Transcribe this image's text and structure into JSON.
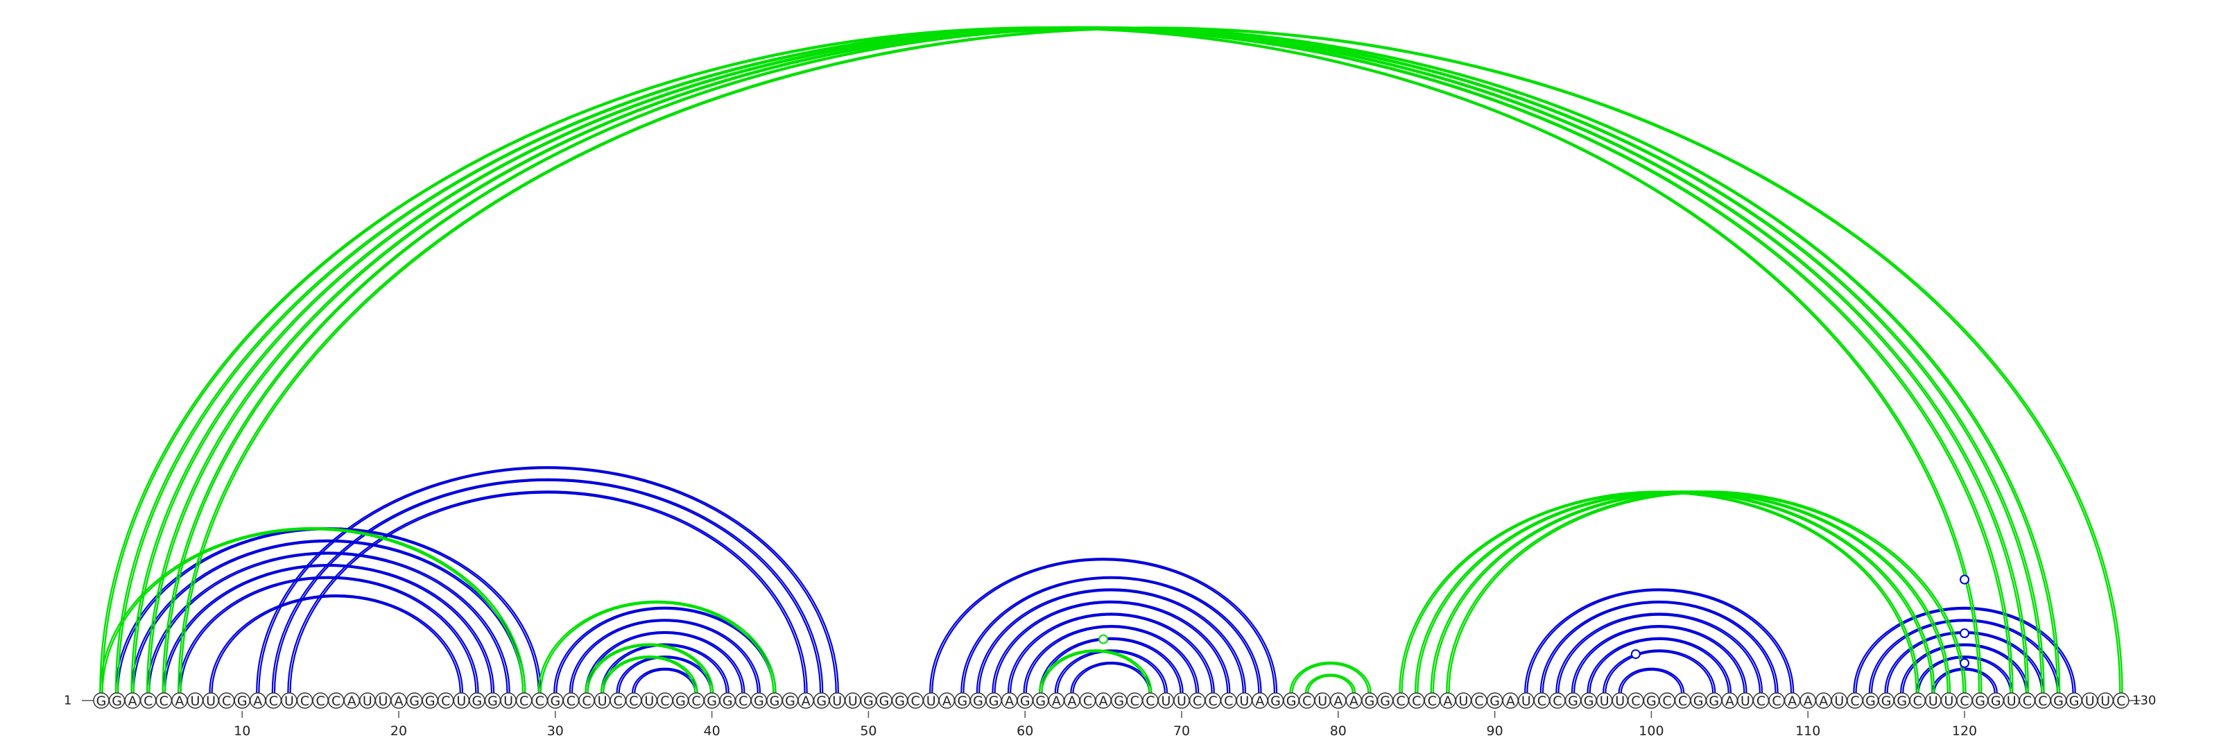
{
  "sequence": "GGACCAUUCGACUCCCAUUAGGCUGGUCCGCCUCCUCGCGGCGGGAGUUGGGCUAGGGAGGAACAGCCUUCCCUAGGCUAAGGCCCAUCGAUCCGGUUCGCCGGAUCCAAAUCGGGCUUCGGUCCGGUUC",
  "start_label": "1",
  "end_label": "130",
  "ticks": [
    10,
    20,
    30,
    40,
    50,
    60,
    70,
    80,
    90,
    100,
    110,
    120
  ],
  "colors": {
    "structure_a": "#00e000",
    "structure_b": "#0000dd"
  },
  "pairs_top": [
    [
      1,
      121
    ],
    [
      2,
      123
    ],
    [
      3,
      124
    ],
    [
      4,
      125
    ],
    [
      5,
      126
    ],
    [
      6,
      130
    ],
    [
      84,
      117
    ],
    [
      85,
      118
    ],
    [
      86,
      119
    ],
    [
      87,
      120
    ],
    [
      77,
      82
    ],
    [
      78,
      81
    ]
  ],
  "pairs_bottom": [
    [
      2,
      29
    ],
    [
      3,
      28
    ],
    [
      4,
      27
    ],
    [
      5,
      26
    ],
    [
      6,
      25
    ],
    [
      8,
      24
    ],
    [
      11,
      48
    ],
    [
      12,
      47
    ],
    [
      13,
      46
    ],
    [
      30,
      44
    ],
    [
      31,
      43
    ],
    [
      32,
      42
    ],
    [
      33,
      41
    ],
    [
      34,
      40
    ],
    [
      35,
      39
    ],
    [
      54,
      76
    ],
    [
      56,
      75
    ],
    [
      57,
      74
    ],
    [
      58,
      73
    ],
    [
      59,
      72
    ],
    [
      60,
      71
    ],
    [
      61,
      70
    ],
    [
      62,
      69
    ],
    [
      63,
      68
    ],
    [
      92,
      109
    ],
    [
      93,
      108
    ],
    [
      94,
      107
    ],
    [
      95,
      106
    ],
    [
      96,
      105
    ],
    [
      97,
      104
    ],
    [
      98,
      102
    ],
    [
      113,
      127
    ],
    [
      114,
      126
    ],
    [
      115,
      125
    ],
    [
      116,
      124
    ],
    [
      117,
      123
    ],
    [
      118,
      122
    ]
  ],
  "pairs_green_low": [
    [
      1,
      28
    ],
    [
      29,
      44
    ],
    [
      32,
      40
    ],
    [
      33,
      39
    ],
    [
      61,
      68
    ]
  ],
  "markers": [
    {
      "pos": 65,
      "level": 18,
      "color": "#00e000"
    },
    {
      "pos": 99,
      "level": 13,
      "color": "#0000dd"
    },
    {
      "pos": 120,
      "level": 10,
      "color": "#0000dd"
    },
    {
      "pos": 120,
      "level": 20,
      "color": "#0000dd"
    },
    {
      "pos": 120,
      "level": 38,
      "color": "#0000dd"
    }
  ]
}
